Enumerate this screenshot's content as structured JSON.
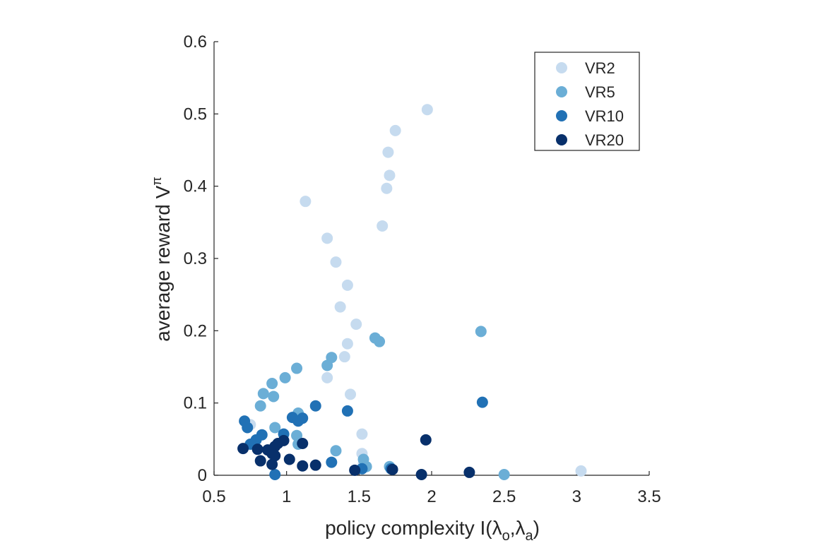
{
  "chart_data": {
    "type": "scatter",
    "title": "",
    "xlabel": "policy complexity I(λ",
    "xlabel_sub1": "o",
    "xlabel_mid": ",λ",
    "xlabel_sub2": "a",
    "xlabel_end": ")",
    "ylabel": "average reward V",
    "ylabel_sup": "π",
    "xlim": [
      0.5,
      3.5
    ],
    "ylim": [
      0,
      0.6
    ],
    "xticks": [
      "0.5",
      "1",
      "1.5",
      "2",
      "2.5",
      "3",
      "3.5"
    ],
    "yticks": [
      "0",
      "0.1",
      "0.2",
      "0.3",
      "0.4",
      "0.5",
      "0.6"
    ],
    "grid": false,
    "legend_position": "top-right",
    "series": [
      {
        "name": "VR2",
        "color": "#c6dbef",
        "points": [
          [
            1.97,
            0.506
          ],
          [
            1.75,
            0.477
          ],
          [
            1.7,
            0.447
          ],
          [
            1.71,
            0.415
          ],
          [
            1.69,
            0.397
          ],
          [
            1.13,
            0.379
          ],
          [
            1.66,
            0.345
          ],
          [
            1.28,
            0.328
          ],
          [
            1.34,
            0.295
          ],
          [
            1.42,
            0.263
          ],
          [
            1.37,
            0.233
          ],
          [
            1.48,
            0.209
          ],
          [
            1.42,
            0.182
          ],
          [
            1.4,
            0.164
          ],
          [
            1.28,
            0.135
          ],
          [
            1.44,
            0.112
          ],
          [
            1.08,
            0.084
          ],
          [
            1.52,
            0.057
          ],
          [
            0.75,
            0.07
          ],
          [
            1.52,
            0.03
          ],
          [
            1.53,
            0.016
          ],
          [
            3.03,
            0.006
          ]
        ]
      },
      {
        "name": "VR5",
        "color": "#6baed6",
        "points": [
          [
            2.34,
            0.199
          ],
          [
            1.61,
            0.19
          ],
          [
            1.64,
            0.185
          ],
          [
            1.31,
            0.163
          ],
          [
            1.28,
            0.152
          ],
          [
            1.07,
            0.148
          ],
          [
            0.99,
            0.135
          ],
          [
            0.9,
            0.127
          ],
          [
            0.84,
            0.113
          ],
          [
            0.91,
            0.109
          ],
          [
            0.82,
            0.096
          ],
          [
            1.08,
            0.086
          ],
          [
            0.92,
            0.066
          ],
          [
            1.07,
            0.055
          ],
          [
            1.08,
            0.043
          ],
          [
            1.34,
            0.034
          ],
          [
            1.53,
            0.022
          ],
          [
            1.71,
            0.012
          ],
          [
            1.55,
            0.012
          ],
          [
            2.5,
            0.001
          ]
        ]
      },
      {
        "name": "VR10",
        "color": "#2171b5",
        "points": [
          [
            2.35,
            0.101
          ],
          [
            1.2,
            0.096
          ],
          [
            1.42,
            0.089
          ],
          [
            1.04,
            0.08
          ],
          [
            1.11,
            0.079
          ],
          [
            1.08,
            0.075
          ],
          [
            0.71,
            0.075
          ],
          [
            0.73,
            0.066
          ],
          [
            0.98,
            0.057
          ],
          [
            0.83,
            0.056
          ],
          [
            0.79,
            0.049
          ],
          [
            0.75,
            0.043
          ],
          [
            1.31,
            0.018
          ],
          [
            1.52,
            0.009
          ],
          [
            1.72,
            0.009
          ],
          [
            0.92,
            0.001
          ]
        ]
      },
      {
        "name": "VR20",
        "color": "#08306b",
        "points": [
          [
            1.96,
            0.049
          ],
          [
            0.98,
            0.048
          ],
          [
            0.94,
            0.044
          ],
          [
            1.11,
            0.044
          ],
          [
            0.92,
            0.04
          ],
          [
            0.7,
            0.037
          ],
          [
            0.8,
            0.036
          ],
          [
            0.87,
            0.035
          ],
          [
            0.9,
            0.03
          ],
          [
            0.92,
            0.027
          ],
          [
            1.02,
            0.022
          ],
          [
            0.82,
            0.02
          ],
          [
            0.9,
            0.015
          ],
          [
            1.11,
            0.013
          ],
          [
            1.2,
            0.014
          ],
          [
            1.47,
            0.007
          ],
          [
            1.73,
            0.008
          ],
          [
            2.26,
            0.004
          ],
          [
            1.93,
            0.001
          ]
        ]
      }
    ]
  }
}
